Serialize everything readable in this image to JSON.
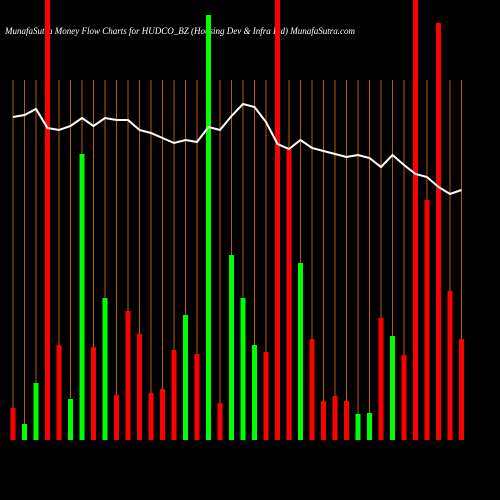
{
  "chart_data": {
    "type": "bar",
    "title": "MunafaSutra  Money Flow  Charts for HUDCO_BZ  (Housing Dev & Infra Ltd) MunafaSutra.com",
    "categories": [
      null,
      null,
      null,
      null,
      null,
      null,
      null,
      null,
      null,
      null,
      null,
      null,
      null,
      null,
      null,
      null,
      null,
      null,
      null,
      null,
      null,
      null,
      null,
      null,
      null,
      null,
      null,
      null,
      null,
      null,
      null,
      null,
      null,
      null,
      null,
      null,
      null,
      null,
      null,
      null
    ],
    "values": [
      32,
      16,
      57,
      440,
      95,
      41,
      286,
      93,
      142,
      45,
      129,
      106,
      47,
      51,
      90,
      125,
      86,
      425,
      37,
      185,
      142,
      95,
      88,
      440,
      293,
      177,
      101,
      39,
      44,
      39,
      26,
      27,
      122,
      104,
      85,
      440,
      240,
      417,
      149,
      101
    ],
    "colors": [
      "#ff0000",
      "#00ff00",
      "#00ff00",
      "#ff0000",
      "#ff0000",
      "#00ff00",
      "#00ff00",
      "#ff0000",
      "#00ff00",
      "#ff0000",
      "#ff0000",
      "#ff0000",
      "#ff0000",
      "#ff0000",
      "#ff0000",
      "#00ff00",
      "#ff0000",
      "#00ff00",
      "#ff0000",
      "#00ff00",
      "#00ff00",
      "#00ff00",
      "#ff0000",
      "#ff0000",
      "#ff0000",
      "#00ff00",
      "#ff0000",
      "#ff0000",
      "#ff0000",
      "#ff0000",
      "#00ff00",
      "#00ff00",
      "#ff0000",
      "#00ff00",
      "#ff0000",
      "#ff0000",
      "#ff0000",
      "#ff0000",
      "#ff0000",
      "#ff0000"
    ],
    "line_values": [
      323,
      325,
      331,
      312,
      310,
      314,
      322,
      314,
      322,
      320,
      320,
      310,
      307,
      302,
      297,
      300,
      298,
      313,
      310,
      324,
      336,
      333,
      318,
      296,
      291,
      300,
      292,
      289,
      286,
      283,
      285,
      282,
      273,
      285,
      275,
      266,
      263,
      253,
      246,
      250
    ],
    "line_color": "#ffffff",
    "ylim": [
      0,
      440
    ]
  }
}
